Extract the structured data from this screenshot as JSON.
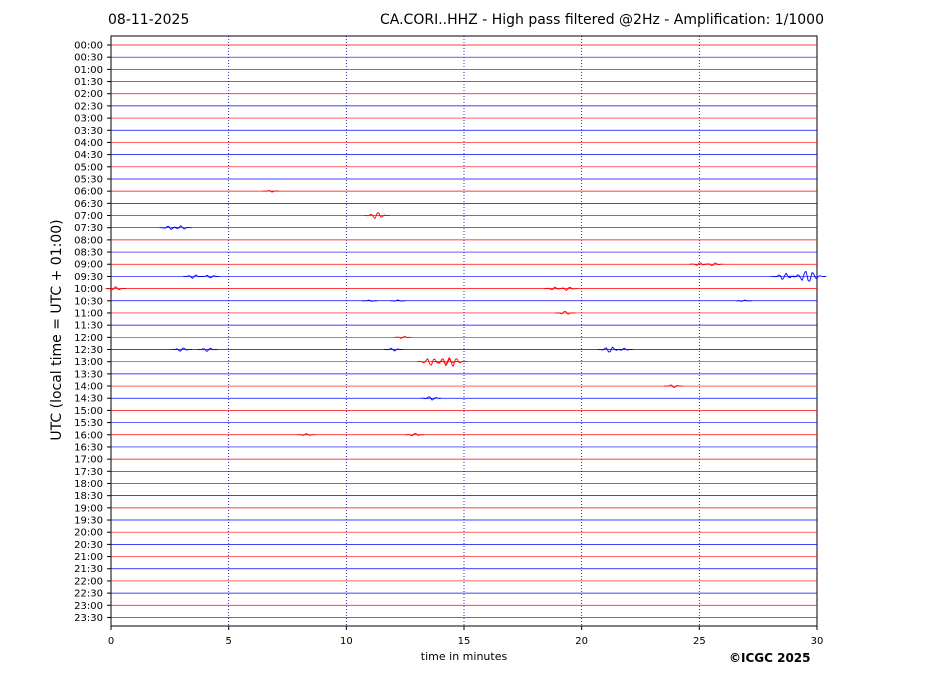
{
  "header": {
    "date": "08-11-2025",
    "title": "CA.CORI..HHZ - High pass filtered @2Hz - Amplification: 1/1000"
  },
  "footer": {
    "copyright": "©ICGC 2025"
  },
  "chart_data": {
    "type": "line",
    "title": "CA.CORI..HHZ - High pass filtered @2Hz - Amplification: 1/1000",
    "xlabel": "time in minutes",
    "ylabel": "UTC (local time = UTC + 01:00)",
    "xlim": [
      0,
      30
    ],
    "x_ticks": [
      0,
      5,
      10,
      15,
      20,
      25,
      30
    ],
    "vertical_gridlines": [
      5,
      10,
      15,
      20,
      25
    ],
    "row_labels": [
      "00:00",
      "00:30",
      "01:00",
      "01:30",
      "02:00",
      "02:30",
      "03:00",
      "03:30",
      "04:00",
      "04:30",
      "05:00",
      "05:30",
      "06:00",
      "06:30",
      "07:00",
      "07:30",
      "08:00",
      "08:30",
      "09:00",
      "09:30",
      "10:00",
      "10:30",
      "11:00",
      "11:30",
      "12:00",
      "12:30",
      "13:00",
      "13:30",
      "14:00",
      "14:30",
      "15:00",
      "15:30",
      "16:00",
      "16:30",
      "17:00",
      "17:30",
      "18:00",
      "18:30",
      "19:00",
      "19:30",
      "20:00",
      "20:30",
      "21:00",
      "21:30",
      "22:00",
      "22:30",
      "23:00",
      "23:30"
    ],
    "colors": {
      "odd_hour": "#ff0000",
      "half_hour": "#0000ff"
    },
    "events": [
      {
        "row": "06:00",
        "minute": 6.8,
        "amp": 0.15
      },
      {
        "row": "07:00",
        "minute": 11.3,
        "amp": 0.5
      },
      {
        "row": "07:30",
        "minute": 2.5,
        "amp": 0.3
      },
      {
        "row": "07:30",
        "minute": 3.0,
        "amp": 0.3
      },
      {
        "row": "09:00",
        "minute": 25.0,
        "amp": 0.25
      },
      {
        "row": "09:00",
        "minute": 25.6,
        "amp": 0.25
      },
      {
        "row": "09:30",
        "minute": 3.5,
        "amp": 0.3
      },
      {
        "row": "09:30",
        "minute": 4.2,
        "amp": 0.25
      },
      {
        "row": "09:30",
        "minute": 28.6,
        "amp": 0.5
      },
      {
        "row": "09:30",
        "minute": 29.6,
        "amp": 0.9
      },
      {
        "row": "10:00",
        "minute": 0.2,
        "amp": 0.3
      },
      {
        "row": "10:00",
        "minute": 18.8,
        "amp": 0.25
      },
      {
        "row": "10:00",
        "minute": 19.4,
        "amp": 0.3
      },
      {
        "row": "10:30",
        "minute": 11.0,
        "amp": 0.12
      },
      {
        "row": "10:30",
        "minute": 12.2,
        "amp": 0.12
      },
      {
        "row": "10:30",
        "minute": 26.9,
        "amp": 0.12
      },
      {
        "row": "11:00",
        "minute": 19.3,
        "amp": 0.3
      },
      {
        "row": "12:00",
        "minute": 12.4,
        "amp": 0.2
      },
      {
        "row": "12:30",
        "minute": 3.0,
        "amp": 0.3
      },
      {
        "row": "12:30",
        "minute": 4.1,
        "amp": 0.3
      },
      {
        "row": "12:30",
        "minute": 12.0,
        "amp": 0.25
      },
      {
        "row": "12:30",
        "minute": 21.2,
        "amp": 0.45
      },
      {
        "row": "12:30",
        "minute": 21.8,
        "amp": 0.2
      },
      {
        "row": "13:00",
        "minute": 13.6,
        "amp": 0.6
      },
      {
        "row": "13:00",
        "minute": 14.2,
        "amp": 0.6
      },
      {
        "row": "13:00",
        "minute": 14.5,
        "amp": 0.7
      },
      {
        "row": "14:00",
        "minute": 23.9,
        "amp": 0.25
      },
      {
        "row": "14:30",
        "minute": 13.6,
        "amp": 0.3
      },
      {
        "row": "16:00",
        "minute": 8.3,
        "amp": 0.2
      },
      {
        "row": "16:00",
        "minute": 12.9,
        "amp": 0.25
      }
    ]
  }
}
